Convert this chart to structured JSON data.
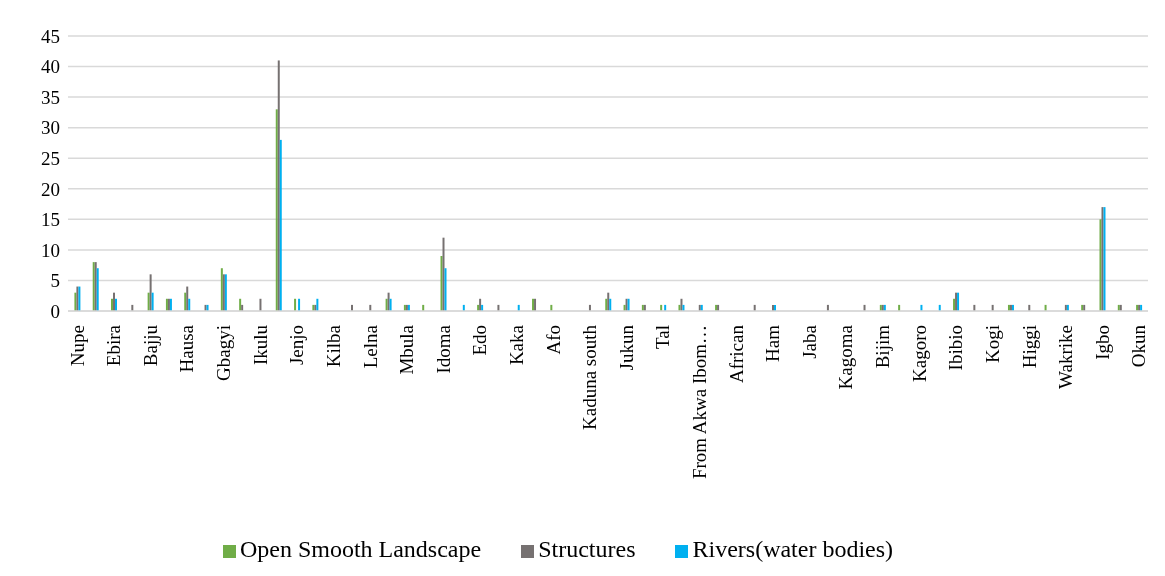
{
  "chart_data": {
    "type": "bar",
    "categories": [
      "Nupe",
      null,
      "Ebira",
      null,
      "Bajju",
      null,
      "Hausa",
      null,
      "Gbagyi",
      null,
      "Ikulu",
      null,
      "Jenjo",
      null,
      "Kilba",
      null,
      "Lelna",
      null,
      "Mbula",
      null,
      "Idoma",
      null,
      "Edo",
      null,
      "Kaka",
      null,
      "Afo",
      null,
      "Kaduna south",
      null,
      "Jukun",
      null,
      "Tal",
      null,
      "From Akwa Ibom…",
      null,
      "African",
      null,
      "Ham",
      null,
      "Jaba",
      null,
      "Kagoma",
      null,
      "Bijim",
      null,
      "Kagoro",
      null,
      "Ibibio",
      null,
      "Kogi",
      null,
      "Higgi",
      null,
      "Wakrike",
      null,
      "Igbo",
      null,
      "Okun"
    ],
    "series": [
      {
        "name": "Open Smooth Landscape",
        "color": "#70ad47",
        "values": [
          3,
          8,
          2,
          0,
          3,
          2,
          3,
          0,
          7,
          2,
          0,
          33,
          2,
          1,
          0,
          0,
          0,
          2,
          1,
          1,
          9,
          0,
          1,
          0,
          0,
          2,
          1,
          0,
          0,
          2,
          1,
          1,
          1,
          1,
          0,
          1,
          0,
          0,
          0,
          0,
          0,
          0,
          0,
          0,
          1,
          1,
          0,
          0,
          2,
          0,
          0,
          1,
          0,
          1,
          0,
          1,
          15,
          1,
          1
        ]
      },
      {
        "name": "Structures",
        "color": "#767171",
        "values": [
          4,
          8,
          3,
          1,
          6,
          2,
          4,
          1,
          6,
          1,
          2,
          41,
          0,
          1,
          0,
          1,
          1,
          3,
          1,
          0,
          12,
          0,
          2,
          1,
          0,
          2,
          0,
          0,
          1,
          3,
          2,
          1,
          0,
          2,
          1,
          1,
          0,
          1,
          1,
          0,
          0,
          1,
          0,
          1,
          1,
          0,
          0,
          0,
          3,
          1,
          1,
          1,
          1,
          0,
          1,
          1,
          17,
          1,
          1
        ]
      },
      {
        "name": "Rivers(water bodies)",
        "color": "#00b0f0",
        "values": [
          4,
          7,
          2,
          0,
          3,
          2,
          2,
          1,
          6,
          0,
          0,
          28,
          2,
          2,
          0,
          0,
          0,
          2,
          1,
          0,
          7,
          1,
          1,
          0,
          1,
          0,
          0,
          0,
          0,
          2,
          2,
          0,
          1,
          1,
          1,
          0,
          0,
          0,
          1,
          0,
          0,
          0,
          0,
          0,
          1,
          0,
          1,
          1,
          3,
          0,
          0,
          1,
          0,
          0,
          1,
          0,
          17,
          0,
          1
        ]
      }
    ],
    "ylim": [
      0,
      45
    ],
    "yticks": [
      0,
      5,
      10,
      15,
      20,
      25,
      30,
      35,
      40,
      45
    ],
    "grid": "y",
    "legend": "bottom"
  }
}
